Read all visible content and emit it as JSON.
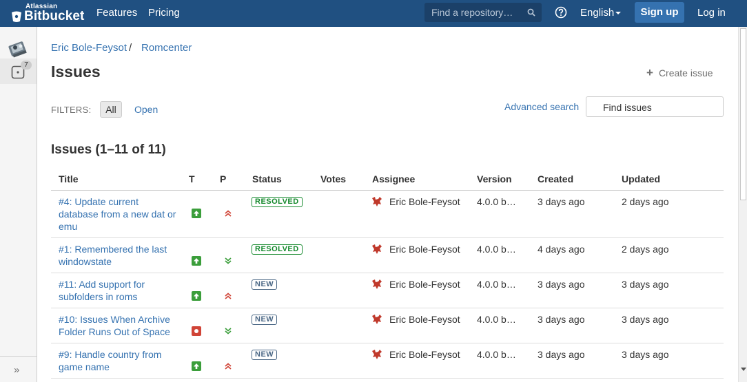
{
  "header": {
    "brand_small": "Atlassian",
    "brand": "Bitbucket",
    "nav": [
      "Features",
      "Pricing"
    ],
    "search_placeholder": "Find a repository…",
    "language": "English",
    "signup": "Sign up",
    "login": "Log in"
  },
  "sidebar": {
    "issues_count": "7",
    "expand_label": "»"
  },
  "breadcrumb": [
    "Eric Bole-Feysot",
    "Romcenter"
  ],
  "breadcrumb_separator": "/",
  "page_title": "Issues",
  "create_issue": "Create issue",
  "filters": {
    "label": "FILTERS:",
    "all": "All",
    "open": "Open"
  },
  "advanced_search": "Advanced search",
  "find_issues_placeholder": "Find issues",
  "list_title": "Issues (1–11 of 11)",
  "columns": [
    "Title",
    "T",
    "P",
    "Status",
    "Votes",
    "Assignee",
    "Version",
    "Created",
    "Updated"
  ],
  "rows": [
    {
      "title": "#4: Update current database from a new dat or emu",
      "type": "enhancement",
      "priority": "major",
      "status": "RESOLVED",
      "votes": "",
      "assignee": "Eric Bole-Feysot",
      "version": "4.0.0 b…",
      "created": "3 days ago",
      "updated": "2 days ago"
    },
    {
      "title": "#1: Remembered the last windowstate",
      "type": "enhancement",
      "priority": "minor",
      "status": "RESOLVED",
      "votes": "",
      "assignee": "Eric Bole-Feysot",
      "version": "4.0.0 b…",
      "created": "4 days ago",
      "updated": "2 days ago"
    },
    {
      "title": "#11: Add support for subfolders in roms",
      "type": "enhancement",
      "priority": "major",
      "status": "NEW",
      "votes": "",
      "assignee": "Eric Bole-Feysot",
      "version": "4.0.0 b…",
      "created": "3 days ago",
      "updated": "3 days ago"
    },
    {
      "title": "#10: Issues When Archive Folder Runs Out of Space",
      "type": "bug",
      "priority": "minor",
      "status": "NEW",
      "votes": "",
      "assignee": "Eric Bole-Feysot",
      "version": "4.0.0 b…",
      "created": "3 days ago",
      "updated": "3 days ago"
    },
    {
      "title": "#9: Handle country from game name",
      "type": "enhancement",
      "priority": "major",
      "status": "NEW",
      "votes": "",
      "assignee": "Eric Bole-Feysot",
      "version": "4.0.0 b…",
      "created": "3 days ago",
      "updated": "3 days ago"
    }
  ],
  "colors": {
    "header_bg": "#205081",
    "link": "#3572b0",
    "resolved": "#14892c",
    "new": "#4a6785",
    "enhancement": "#3b9e3b",
    "bug": "#d04437"
  }
}
